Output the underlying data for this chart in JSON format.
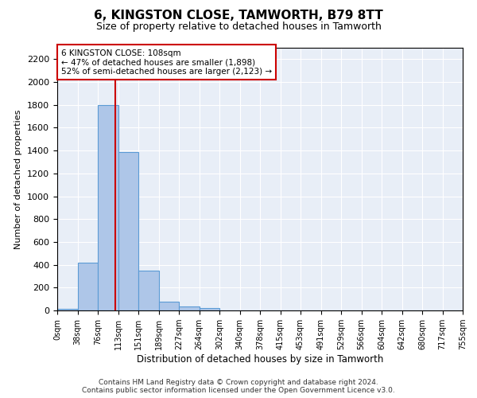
{
  "title": "6, KINGSTON CLOSE, TAMWORTH, B79 8TT",
  "subtitle": "Size of property relative to detached houses in Tamworth",
  "xlabel": "Distribution of detached houses by size in Tamworth",
  "ylabel": "Number of detached properties",
  "bin_edges": [
    0,
    37.75,
    75.5,
    113.25,
    151.0,
    188.75,
    226.5,
    264.25,
    302.0,
    339.75,
    377.5,
    415.25,
    453.0,
    490.75,
    528.5,
    566.25,
    604.0,
    641.75,
    679.5,
    717.25,
    755.0
  ],
  "bin_labels": [
    "0sqm",
    "38sqm",
    "76sqm",
    "113sqm",
    "151sqm",
    "189sqm",
    "227sqm",
    "264sqm",
    "302sqm",
    "340sqm",
    "378sqm",
    "415sqm",
    "453sqm",
    "491sqm",
    "529sqm",
    "566sqm",
    "604sqm",
    "642sqm",
    "680sqm",
    "717sqm",
    "755sqm"
  ],
  "bar_heights": [
    15,
    420,
    1800,
    1390,
    350,
    80,
    35,
    18,
    0,
    0,
    0,
    0,
    0,
    0,
    0,
    0,
    0,
    0,
    0,
    0
  ],
  "bar_color": "#aec6e8",
  "bar_edgecolor": "#5b9bd5",
  "vline_x": 108,
  "vline_color": "#cc0000",
  "ylim": [
    0,
    2300
  ],
  "yticks": [
    0,
    200,
    400,
    600,
    800,
    1000,
    1200,
    1400,
    1600,
    1800,
    2000,
    2200
  ],
  "annotation_text": "6 KINGSTON CLOSE: 108sqm\n← 47% of detached houses are smaller (1,898)\n52% of semi-detached houses are larger (2,123) →",
  "annotation_box_color": "#ffffff",
  "annotation_box_edgecolor": "#cc0000",
  "bg_color": "#e8eef7",
  "grid_color": "#ffffff",
  "footer_line1": "Contains HM Land Registry data © Crown copyright and database right 2024.",
  "footer_line2": "Contains public sector information licensed under the Open Government Licence v3.0."
}
